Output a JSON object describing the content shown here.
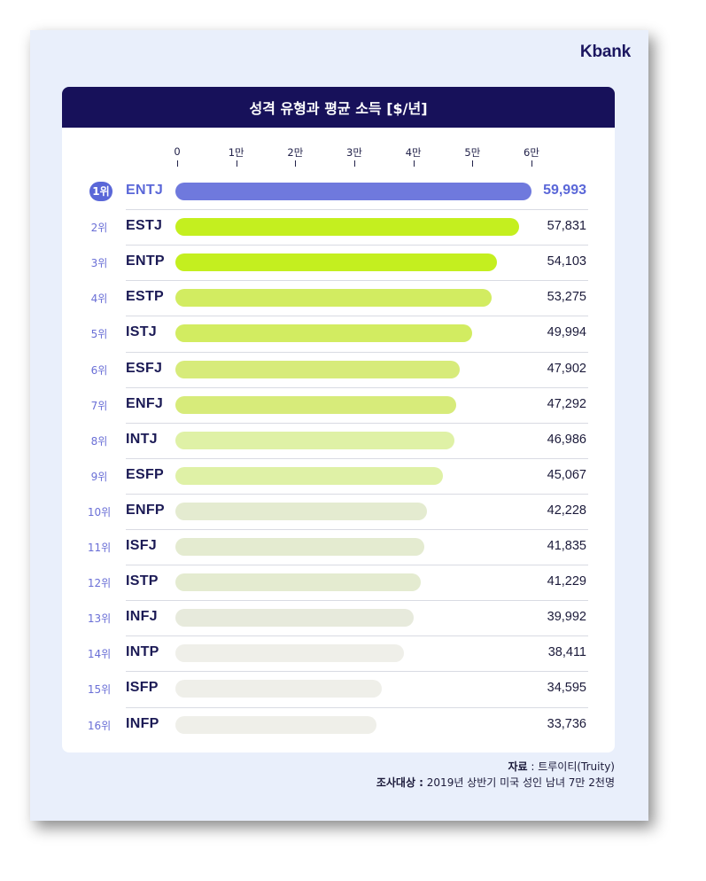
{
  "brand": "Kbank",
  "chart_data": {
    "type": "bar",
    "orientation": "horizontal",
    "title": "성격 유형과 평균 소득 [$/년]",
    "xlim": [
      0,
      60000
    ],
    "ticks": [
      {
        "value": 0,
        "label": "0"
      },
      {
        "value": 10000,
        "label": "1만"
      },
      {
        "value": 20000,
        "label": "2만"
      },
      {
        "value": 30000,
        "label": "3만"
      },
      {
        "value": 40000,
        "label": "4만"
      },
      {
        "value": 50000,
        "label": "5만"
      },
      {
        "value": 60000,
        "label": "6만"
      }
    ],
    "rows": [
      {
        "rank": "1위",
        "type": "ENTJ",
        "value": 59993,
        "label": "59,993",
        "color": "#6f79dd"
      },
      {
        "rank": "2위",
        "type": "ESTJ",
        "value": 57831,
        "label": "57,831",
        "color": "#c4ef1f"
      },
      {
        "rank": "3위",
        "type": "ENTP",
        "value": 54103,
        "label": "54,103",
        "color": "#c4ef1f"
      },
      {
        "rank": "4위",
        "type": "ESTP",
        "value": 53275,
        "label": "53,275",
        "color": "#d2ec61"
      },
      {
        "rank": "5위",
        "type": "ISTJ",
        "value": 49994,
        "label": "49,994",
        "color": "#d2ec61"
      },
      {
        "rank": "6위",
        "type": "ESFJ",
        "value": 47902,
        "label": "47,902",
        "color": "#d7eb7a"
      },
      {
        "rank": "7위",
        "type": "ENFJ",
        "value": 47292,
        "label": "47,292",
        "color": "#d7eb7a"
      },
      {
        "rank": "8위",
        "type": "INTJ",
        "value": 46986,
        "label": "46,986",
        "color": "#dff1a6"
      },
      {
        "rank": "9위",
        "type": "ESFP",
        "value": 45067,
        "label": "45,067",
        "color": "#dff1a6"
      },
      {
        "rank": "10위",
        "type": "ENFP",
        "value": 42228,
        "label": "42,228",
        "color": "#e4ebd0"
      },
      {
        "rank": "11위",
        "type": "ISFJ",
        "value": 41835,
        "label": "41,835",
        "color": "#e4ebd0"
      },
      {
        "rank": "12위",
        "type": "ISTP",
        "value": 41229,
        "label": "41,229",
        "color": "#e4ebd0"
      },
      {
        "rank": "13위",
        "type": "INFJ",
        "value": 39992,
        "label": "39,992",
        "color": "#e7eadc"
      },
      {
        "rank": "14위",
        "type": "INTP",
        "value": 38411,
        "label": "38,411",
        "color": "#efefe9"
      },
      {
        "rank": "15위",
        "type": "ISFP",
        "value": 34595,
        "label": "34,595",
        "color": "#efefe9"
      },
      {
        "rank": "16위",
        "type": "INFP",
        "value": 33736,
        "label": "33,736",
        "color": "#efefe9"
      }
    ],
    "highlight_value_color": "#5a67d8"
  },
  "source": {
    "line1_key": "자료",
    "line1_value": " : 트루이티(Truity)",
    "line2_key": "조사대상 :",
    "line2_value": " 2019년 상반기 미국 성인 남녀 7만 2천명"
  }
}
